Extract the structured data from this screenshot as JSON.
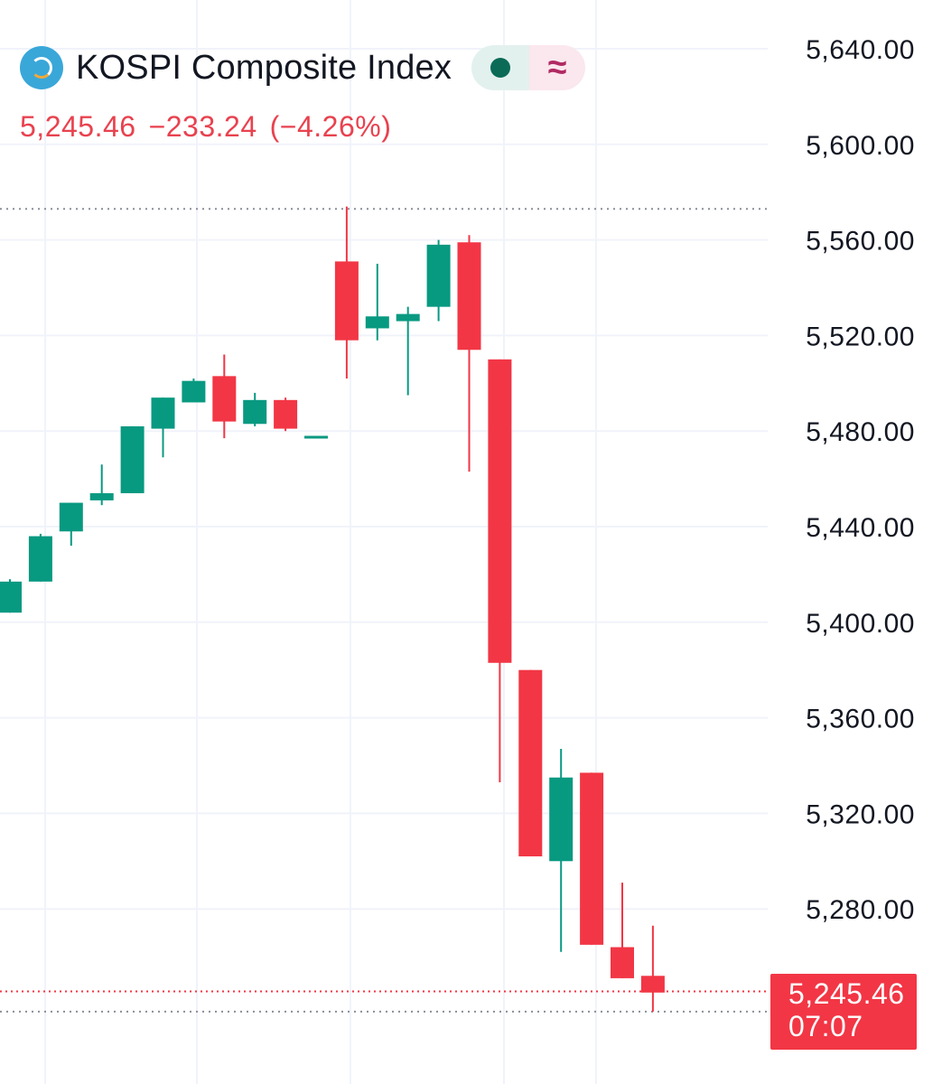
{
  "header": {
    "logo_icon": "kospi-logo-icon",
    "title": "KOSPI Composite Index",
    "price": "5,245.46",
    "change": "−233.24",
    "change_pct": "(−4.26%)",
    "status_dot_color": "#0b6b56",
    "status_wave_icon": "wave-icon",
    "wave_glyph": "≈"
  },
  "price_tag": {
    "value": "5,245.46",
    "countdown": "07:07"
  },
  "colors": {
    "up": "#089981",
    "down": "#f23645",
    "grid": "#f0f3fa",
    "text": "#131722",
    "negative": "#e8424f"
  },
  "chart_data": {
    "type": "candlestick",
    "y_axis": {
      "ticks": [
        5640,
        5600,
        5560,
        5520,
        5480,
        5440,
        5400,
        5360,
        5320,
        5280
      ],
      "tick_labels": [
        "5,640.00",
        "5,600.00",
        "5,560.00",
        "5,520.00",
        "5,480.00",
        "5,440.00",
        "5,400.00",
        "5,360.00",
        "5,320.00",
        "5,280.00"
      ],
      "range": [
        5228,
        5655
      ]
    },
    "grid": true,
    "last_price_line": 5245.46,
    "high_line": 5573,
    "low_line": 5237,
    "candles": [
      {
        "o": 5404,
        "h": 5418,
        "l": 5404,
        "c": 5417
      },
      {
        "o": 5417,
        "h": 5437,
        "l": 5417,
        "c": 5436
      },
      {
        "o": 5438,
        "h": 5450,
        "l": 5432,
        "c": 5450
      },
      {
        "o": 5451,
        "h": 5466,
        "l": 5449,
        "c": 5454
      },
      {
        "o": 5454,
        "h": 5482,
        "l": 5454,
        "c": 5482
      },
      {
        "o": 5481,
        "h": 5494,
        "l": 5469,
        "c": 5494
      },
      {
        "o": 5492,
        "h": 5502,
        "l": 5492,
        "c": 5501
      },
      {
        "o": 5503,
        "h": 5512,
        "l": 5477,
        "c": 5484
      },
      {
        "o": 5483,
        "h": 5496,
        "l": 5482,
        "c": 5493
      },
      {
        "o": 5493,
        "h": 5494,
        "l": 5480,
        "c": 5481
      },
      {
        "o": 5478,
        "h": 5478,
        "l": 5478,
        "c": 5478
      },
      {
        "o": 5551,
        "h": 5574,
        "l": 5502,
        "c": 5518
      },
      {
        "o": 5523,
        "h": 5550,
        "l": 5518,
        "c": 5528
      },
      {
        "o": 5526,
        "h": 5532,
        "l": 5495,
        "c": 5529
      },
      {
        "o": 5532,
        "h": 5560,
        "l": 5526,
        "c": 5558
      },
      {
        "o": 5559,
        "h": 5562,
        "l": 5463,
        "c": 5514
      },
      {
        "o": 5510,
        "h": 5510,
        "l": 5333,
        "c": 5383
      },
      {
        "o": 5380,
        "h": 5380,
        "l": 5302,
        "c": 5302
      },
      {
        "o": 5300,
        "h": 5347,
        "l": 5262,
        "c": 5335
      },
      {
        "o": 5337,
        "h": 5337,
        "l": 5265,
        "c": 5265
      },
      {
        "o": 5264,
        "h": 5291,
        "l": 5251,
        "c": 5251
      },
      {
        "o": 5252,
        "h": 5273,
        "l": 5237,
        "c": 5245
      }
    ]
  }
}
